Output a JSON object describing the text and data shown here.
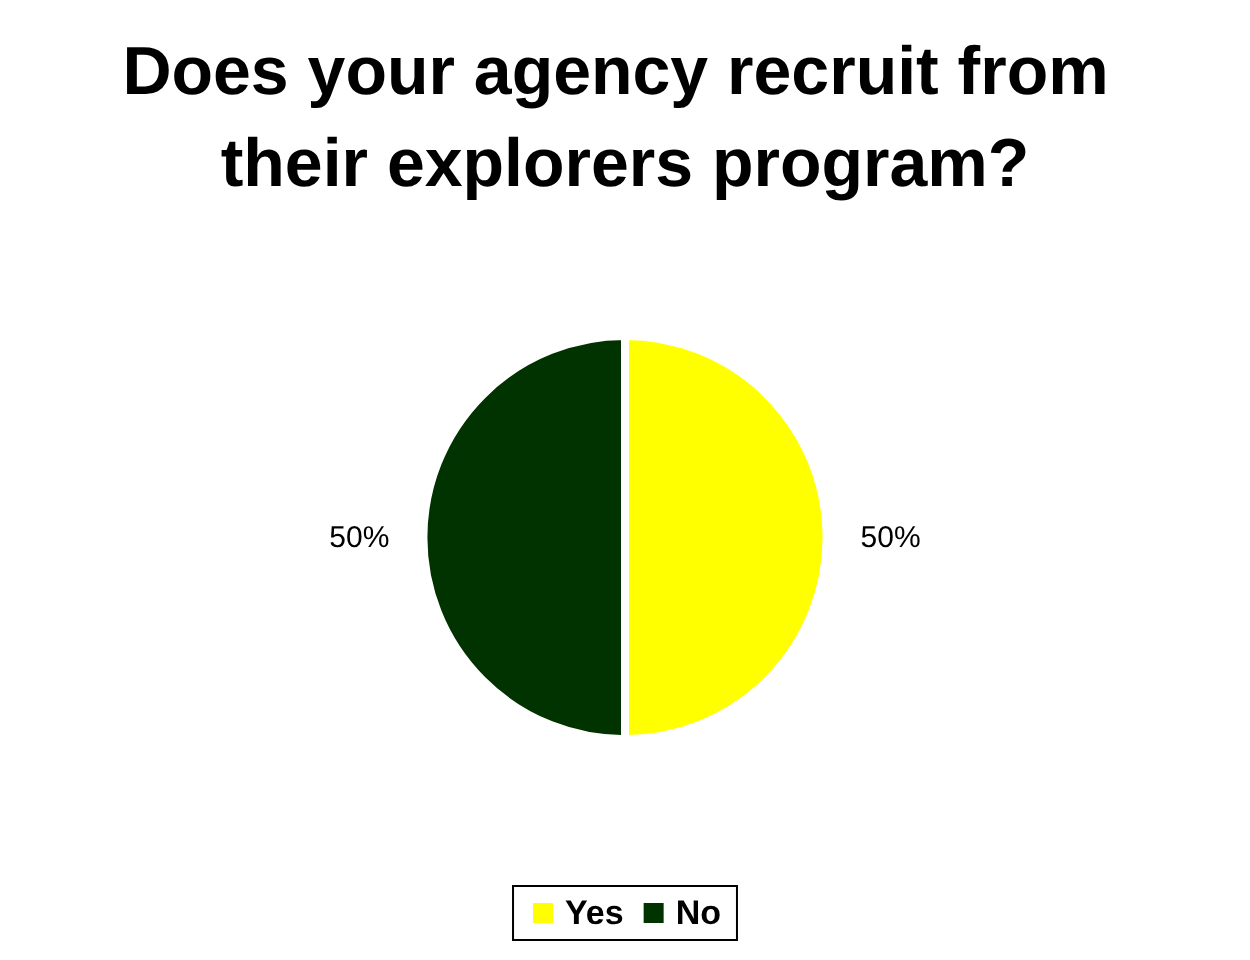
{
  "chart_data": {
    "type": "pie",
    "title": "Does your agency recruit from their explorers program?",
    "categories": [
      "Yes",
      "No"
    ],
    "values": [
      50,
      50
    ],
    "colors": [
      "#ffff00",
      "#003300"
    ],
    "value_labels": [
      "50%",
      "50%"
    ],
    "legend": "bottom"
  }
}
